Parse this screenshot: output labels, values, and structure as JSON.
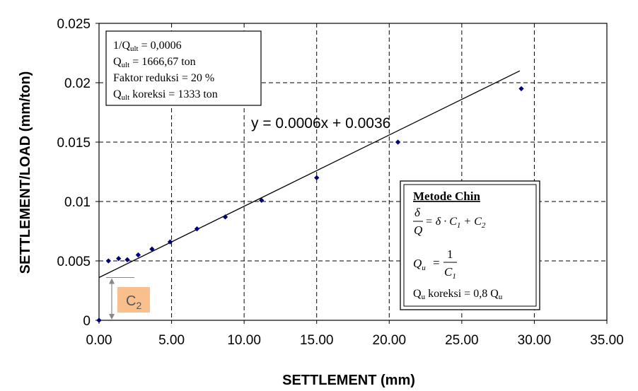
{
  "chart_data": {
    "type": "scatter",
    "xlabel": "SETTLEMENT (mm)",
    "ylabel": "SETTLEMENT/LOAD (mm/ton)",
    "xlim": [
      0,
      35
    ],
    "ylim": [
      0,
      0.025
    ],
    "x_ticks": [
      "0.00",
      "5.00",
      "10.00",
      "15.00",
      "20.00",
      "25.00",
      "30.00",
      "35.00"
    ],
    "y_ticks": [
      "0",
      "0.005",
      "0.01",
      "0.015",
      "0.02",
      "0.025"
    ],
    "x_tick_values": [
      0,
      5,
      10,
      15,
      20,
      25,
      30,
      35
    ],
    "y_tick_values": [
      0,
      0.005,
      0.01,
      0.015,
      0.02,
      0.025
    ],
    "grid": true,
    "point_color": "#00007a",
    "series": [
      {
        "x": [
          0.0,
          0.65,
          1.35,
          1.95,
          2.7,
          3.65,
          4.9,
          6.75,
          8.7,
          11.2,
          15.0,
          20.6,
          29.1
        ],
        "y": [
          0.0,
          0.005,
          0.0052,
          0.0051,
          0.0055,
          0.006,
          0.0066,
          0.0077,
          0.0087,
          0.0101,
          0.012,
          0.015,
          0.0195
        ]
      }
    ],
    "trendline": {
      "slope": 0.0006,
      "intercept": 0.0036,
      "x_range": [
        0,
        29
      ],
      "label": "y = 0.0006x + 0.0036"
    },
    "annotation_top_left": {
      "line1": "1/Q",
      "line1_sub": "ult",
      "line1_rest": " = 0,0006",
      "line2": "Q",
      "line2_sub": "ult",
      "line2_rest": " = 1666,67 ton",
      "line3": "Faktor reduksi = 20 %",
      "line4": "Q",
      "line4_sub": "ult",
      "line4_rest": " koreksi = 1333 ton"
    },
    "annotation_chin": {
      "title": "Metode Chin",
      "formula1_num": "δ",
      "formula1_den": "Q",
      "formula1_rhs": "= δ · C",
      "formula1_sub1": "1",
      "formula1_plus": " + C",
      "formula1_sub2": "2",
      "formula2_lhs": "Q",
      "formula2_lhs_sub": "u",
      "formula2_eq": "=",
      "formula2_num": "1",
      "formula2_den": "C",
      "formula2_den_sub": "1",
      "line3": "Q",
      "line3_sub": "u",
      "line3_rest": " koreksi = 0,8 Q",
      "line3_sub2": "u"
    },
    "c2_label": "C",
    "c2_sub": "2",
    "c2_color": "#f9c08e"
  }
}
